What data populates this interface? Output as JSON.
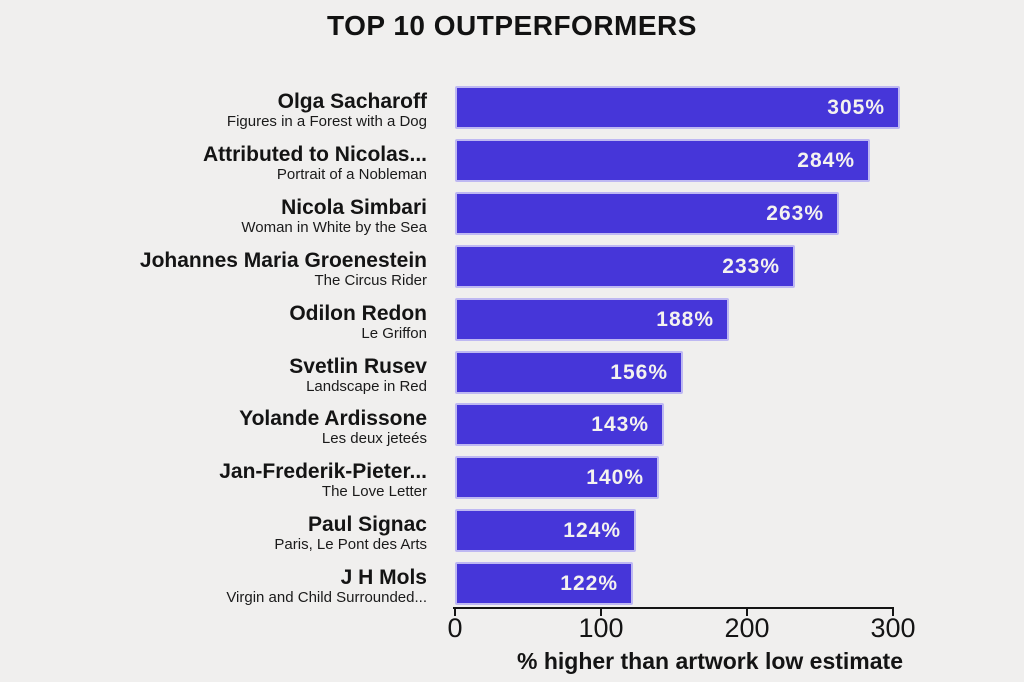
{
  "title": "TOP 10 OUTPERFORMERS",
  "colors": {
    "background": "#f0efee",
    "bar": "#4636d9",
    "bar_label_text": "#f4f2ef",
    "text": "#141414"
  },
  "chart_data": {
    "type": "bar",
    "orientation": "horizontal",
    "title": "TOP 10 OUTPERFORMERS",
    "xlabel": "% higher than artwork low estimate",
    "xlim": [
      0,
      300
    ],
    "xticks": [
      "0",
      "100",
      "200",
      "300"
    ],
    "xtick_values": [
      0,
      100,
      200,
      300
    ],
    "grid": false,
    "legend": false,
    "bar_value_label_position": "inside-right",
    "items": [
      {
        "artist": "Olga Sacharoff",
        "artwork": "Figures in a Forest with a Dog",
        "value": 305,
        "value_label": "305%"
      },
      {
        "artist": "Attributed to Nicolas...",
        "artwork": "Portrait of a Nobleman",
        "value": 284,
        "value_label": "284%"
      },
      {
        "artist": "Nicola Simbari",
        "artwork": "Woman in White by the Sea",
        "value": 263,
        "value_label": "263%"
      },
      {
        "artist": "Johannes Maria Groenestein",
        "artwork": "The Circus Rider",
        "value": 233,
        "value_label": "233%"
      },
      {
        "artist": "Odilon Redon",
        "artwork": "Le Griffon",
        "value": 188,
        "value_label": "188%"
      },
      {
        "artist": "Svetlin Rusev",
        "artwork": "Landscape in Red",
        "value": 156,
        "value_label": "156%"
      },
      {
        "artist": "Yolande Ardissone",
        "artwork": "Les deux jeteés",
        "value": 143,
        "value_label": "143%"
      },
      {
        "artist": "Jan-Frederik-Pieter...",
        "artwork": "The Love Letter",
        "value": 140,
        "value_label": "140%"
      },
      {
        "artist": "Paul Signac",
        "artwork": "Paris, Le Pont des Arts",
        "value": 124,
        "value_label": "124%"
      },
      {
        "artist": "J H Mols",
        "artwork": "Virgin and Child Surrounded...",
        "value": 122,
        "value_label": "122%"
      }
    ]
  }
}
